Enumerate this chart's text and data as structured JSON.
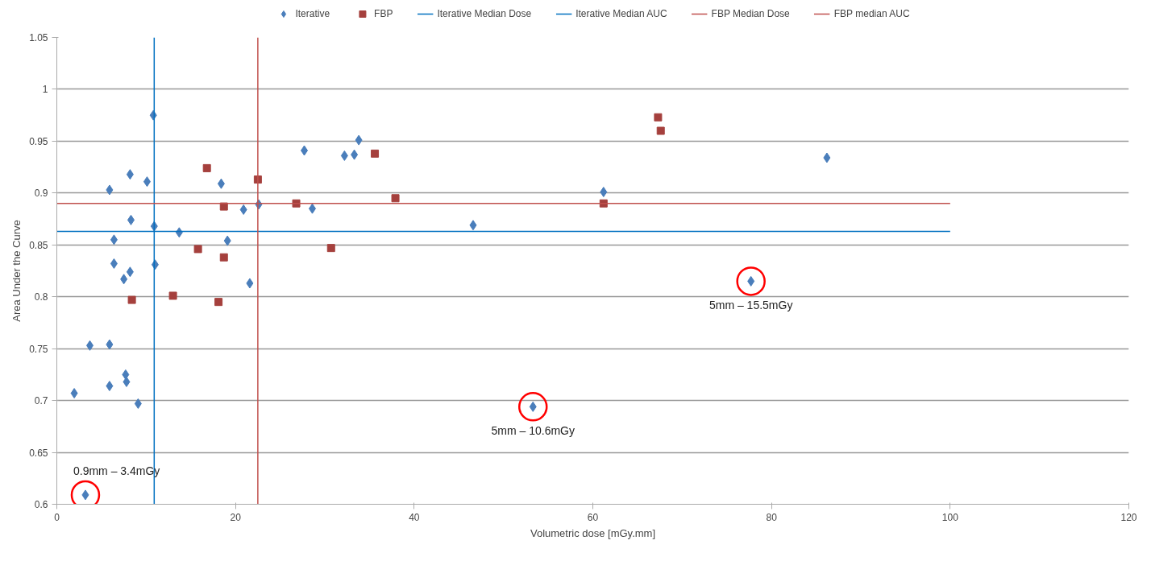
{
  "chart_data": {
    "type": "scatter",
    "xlabel": "Volumetric dose [mGy.mm]",
    "ylabel": "Area Under the Curve",
    "xlim": [
      0,
      120
    ],
    "xticks": [
      0,
      20,
      40,
      60,
      80,
      100,
      120
    ],
    "ylim": [
      0.6,
      1.05
    ],
    "yticks": [
      0.6,
      0.65,
      0.7,
      0.75,
      0.8,
      0.85,
      0.9,
      0.95,
      1,
      1.05
    ],
    "grid": "y",
    "legend": "top",
    "series": [
      {
        "name": "Iterative",
        "type": "scatter",
        "marker": "diamond",
        "color": "#4a7ebb",
        "x": [
          1.95,
          3.7,
          3.2,
          5.9,
          6.4,
          6.4,
          5.9,
          5.9,
          7.5,
          7.7,
          7.8,
          8.2,
          8.3,
          8.2,
          9.1,
          10.1,
          10.8,
          10.9,
          11.0,
          13.7,
          18.4,
          19.1,
          20.9,
          22.6,
          21.6,
          27.7,
          28.6,
          32.2,
          33.3,
          33.8,
          46.6,
          61.2,
          77.7,
          86.2,
          53.3
        ],
        "values": [
          0.707,
          0.753,
          0.609,
          0.903,
          0.855,
          0.832,
          0.754,
          0.714,
          0.817,
          0.725,
          0.718,
          0.918,
          0.874,
          0.824,
          0.697,
          0.911,
          0.975,
          0.868,
          0.831,
          0.862,
          0.909,
          0.854,
          0.884,
          0.889,
          0.813,
          0.941,
          0.885,
          0.936,
          0.937,
          0.951,
          0.869,
          0.901,
          0.815,
          0.934,
          0.694
        ]
      },
      {
        "name": "FBP",
        "type": "scatter",
        "marker": "square",
        "color": "#a5403d",
        "x": [
          8.4,
          13.0,
          18.1,
          15.8,
          18.7,
          18.7,
          16.8,
          22.5,
          26.8,
          30.7,
          35.6,
          37.9,
          61.2,
          67.3,
          67.6
        ],
        "values": [
          0.797,
          0.801,
          0.795,
          0.846,
          0.838,
          0.887,
          0.924,
          0.913,
          0.89,
          0.847,
          0.938,
          0.895,
          0.89,
          0.973,
          0.96
        ]
      },
      {
        "name": "Iterative Median Dose",
        "type": "line",
        "marker": "none",
        "color": "#0070c0",
        "x": [
          10.9,
          10.9
        ],
        "values": [
          0.6,
          1.05
        ]
      },
      {
        "name": "Iterative Median AUC",
        "type": "line",
        "marker": "none",
        "color": "#0070c0",
        "x": [
          0,
          100
        ],
        "values": [
          0.863,
          0.863
        ]
      },
      {
        "name": "FBP Median Dose",
        "type": "line",
        "marker": "none",
        "color": "#c0504d",
        "x": [
          22.5,
          22.5
        ],
        "values": [
          0.6,
          1.05
        ]
      },
      {
        "name": "FBP median AUC",
        "type": "line",
        "marker": "none",
        "color": "#c0504d",
        "x": [
          0,
          100
        ],
        "values": [
          0.89,
          0.89
        ]
      }
    ],
    "annotations": [
      {
        "text": "0.9mm – 3.4mGy",
        "x": 3.2,
        "y": 0.609
      },
      {
        "text": "5mm – 10.6mGy",
        "x": 53.3,
        "y": 0.694
      },
      {
        "text": "5mm – 15.5mGy",
        "x": 77.7,
        "y": 0.815
      }
    ]
  }
}
